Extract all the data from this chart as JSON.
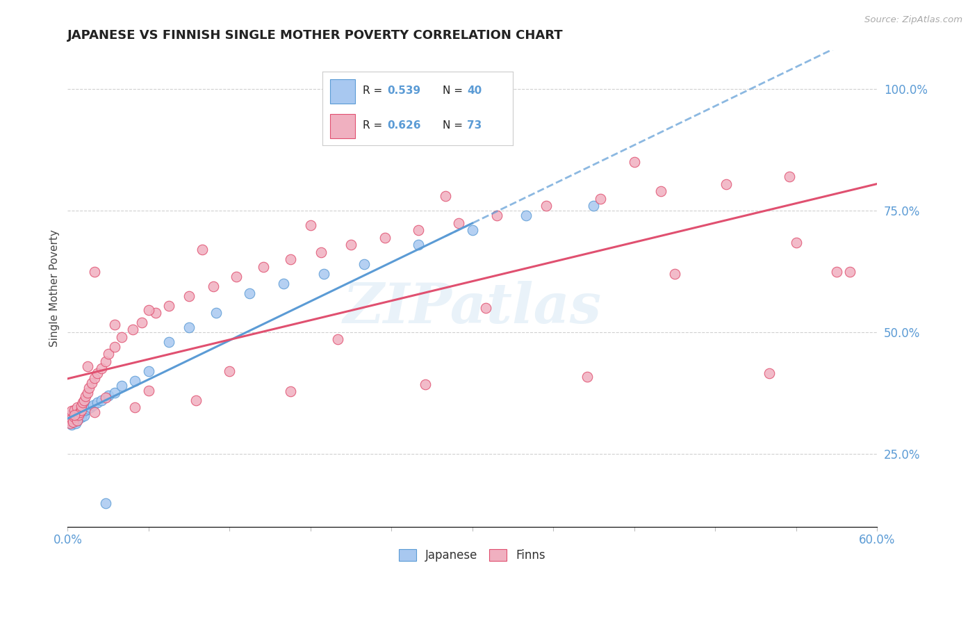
{
  "title": "JAPANESE VS FINNISH SINGLE MOTHER POVERTY CORRELATION CHART",
  "source": "Source: ZipAtlas.com",
  "ylabel": "Single Mother Poverty",
  "xlim": [
    0.0,
    0.6
  ],
  "ylim": [
    0.1,
    1.08
  ],
  "right_yticks": [
    0.25,
    0.5,
    0.75,
    1.0
  ],
  "right_yticklabels": [
    "25.0%",
    "50.0%",
    "75.0%",
    "100.0%"
  ],
  "color_japanese": "#a8c8f0",
  "color_finns": "#f0b0c0",
  "line_color_japanese": "#5b9bd5",
  "line_color_finns": "#e05070",
  "background_color": "#ffffff",
  "japanese_x": [
    0.001,
    0.002,
    0.002,
    0.003,
    0.003,
    0.004,
    0.004,
    0.005,
    0.005,
    0.006,
    0.006,
    0.007,
    0.008,
    0.009,
    0.01,
    0.011,
    0.012,
    0.013,
    0.015,
    0.017,
    0.019,
    0.022,
    0.025,
    0.028,
    0.03,
    0.035,
    0.04,
    0.05,
    0.06,
    0.075,
    0.09,
    0.11,
    0.135,
    0.16,
    0.19,
    0.22,
    0.26,
    0.3,
    0.34,
    0.39
  ],
  "japanese_y": [
    0.315,
    0.32,
    0.325,
    0.31,
    0.33,
    0.318,
    0.322,
    0.315,
    0.328,
    0.312,
    0.335,
    0.318,
    0.322,
    0.33,
    0.325,
    0.335,
    0.328,
    0.34,
    0.342,
    0.345,
    0.35,
    0.355,
    0.36,
    0.148,
    0.37,
    0.375,
    0.39,
    0.4,
    0.42,
    0.48,
    0.51,
    0.54,
    0.58,
    0.6,
    0.62,
    0.64,
    0.68,
    0.71,
    0.74,
    0.76
  ],
  "finns_x": [
    0.001,
    0.002,
    0.002,
    0.003,
    0.003,
    0.004,
    0.005,
    0.005,
    0.006,
    0.007,
    0.007,
    0.008,
    0.009,
    0.01,
    0.01,
    0.011,
    0.012,
    0.013,
    0.015,
    0.016,
    0.018,
    0.02,
    0.022,
    0.025,
    0.028,
    0.03,
    0.035,
    0.04,
    0.048,
    0.055,
    0.065,
    0.075,
    0.09,
    0.108,
    0.125,
    0.145,
    0.165,
    0.188,
    0.21,
    0.235,
    0.26,
    0.29,
    0.318,
    0.355,
    0.395,
    0.44,
    0.488,
    0.535,
    0.028,
    0.015,
    0.035,
    0.06,
    0.02,
    0.1,
    0.18,
    0.28,
    0.42,
    0.06,
    0.12,
    0.2,
    0.31,
    0.45,
    0.54,
    0.58,
    0.02,
    0.05,
    0.095,
    0.165,
    0.265,
    0.385,
    0.52,
    0.005,
    0.57
  ],
  "finns_y": [
    0.318,
    0.312,
    0.33,
    0.322,
    0.338,
    0.315,
    0.325,
    0.34,
    0.328,
    0.318,
    0.345,
    0.33,
    0.335,
    0.34,
    0.348,
    0.355,
    0.36,
    0.368,
    0.375,
    0.385,
    0.395,
    0.405,
    0.415,
    0.425,
    0.44,
    0.455,
    0.47,
    0.49,
    0.505,
    0.52,
    0.54,
    0.555,
    0.575,
    0.595,
    0.615,
    0.635,
    0.65,
    0.665,
    0.68,
    0.695,
    0.71,
    0.725,
    0.74,
    0.76,
    0.775,
    0.79,
    0.805,
    0.82,
    0.365,
    0.43,
    0.515,
    0.545,
    0.625,
    0.67,
    0.72,
    0.78,
    0.85,
    0.38,
    0.42,
    0.485,
    0.55,
    0.62,
    0.685,
    0.625,
    0.335,
    0.345,
    0.36,
    0.378,
    0.392,
    0.408,
    0.415,
    0.33,
    0.625
  ]
}
